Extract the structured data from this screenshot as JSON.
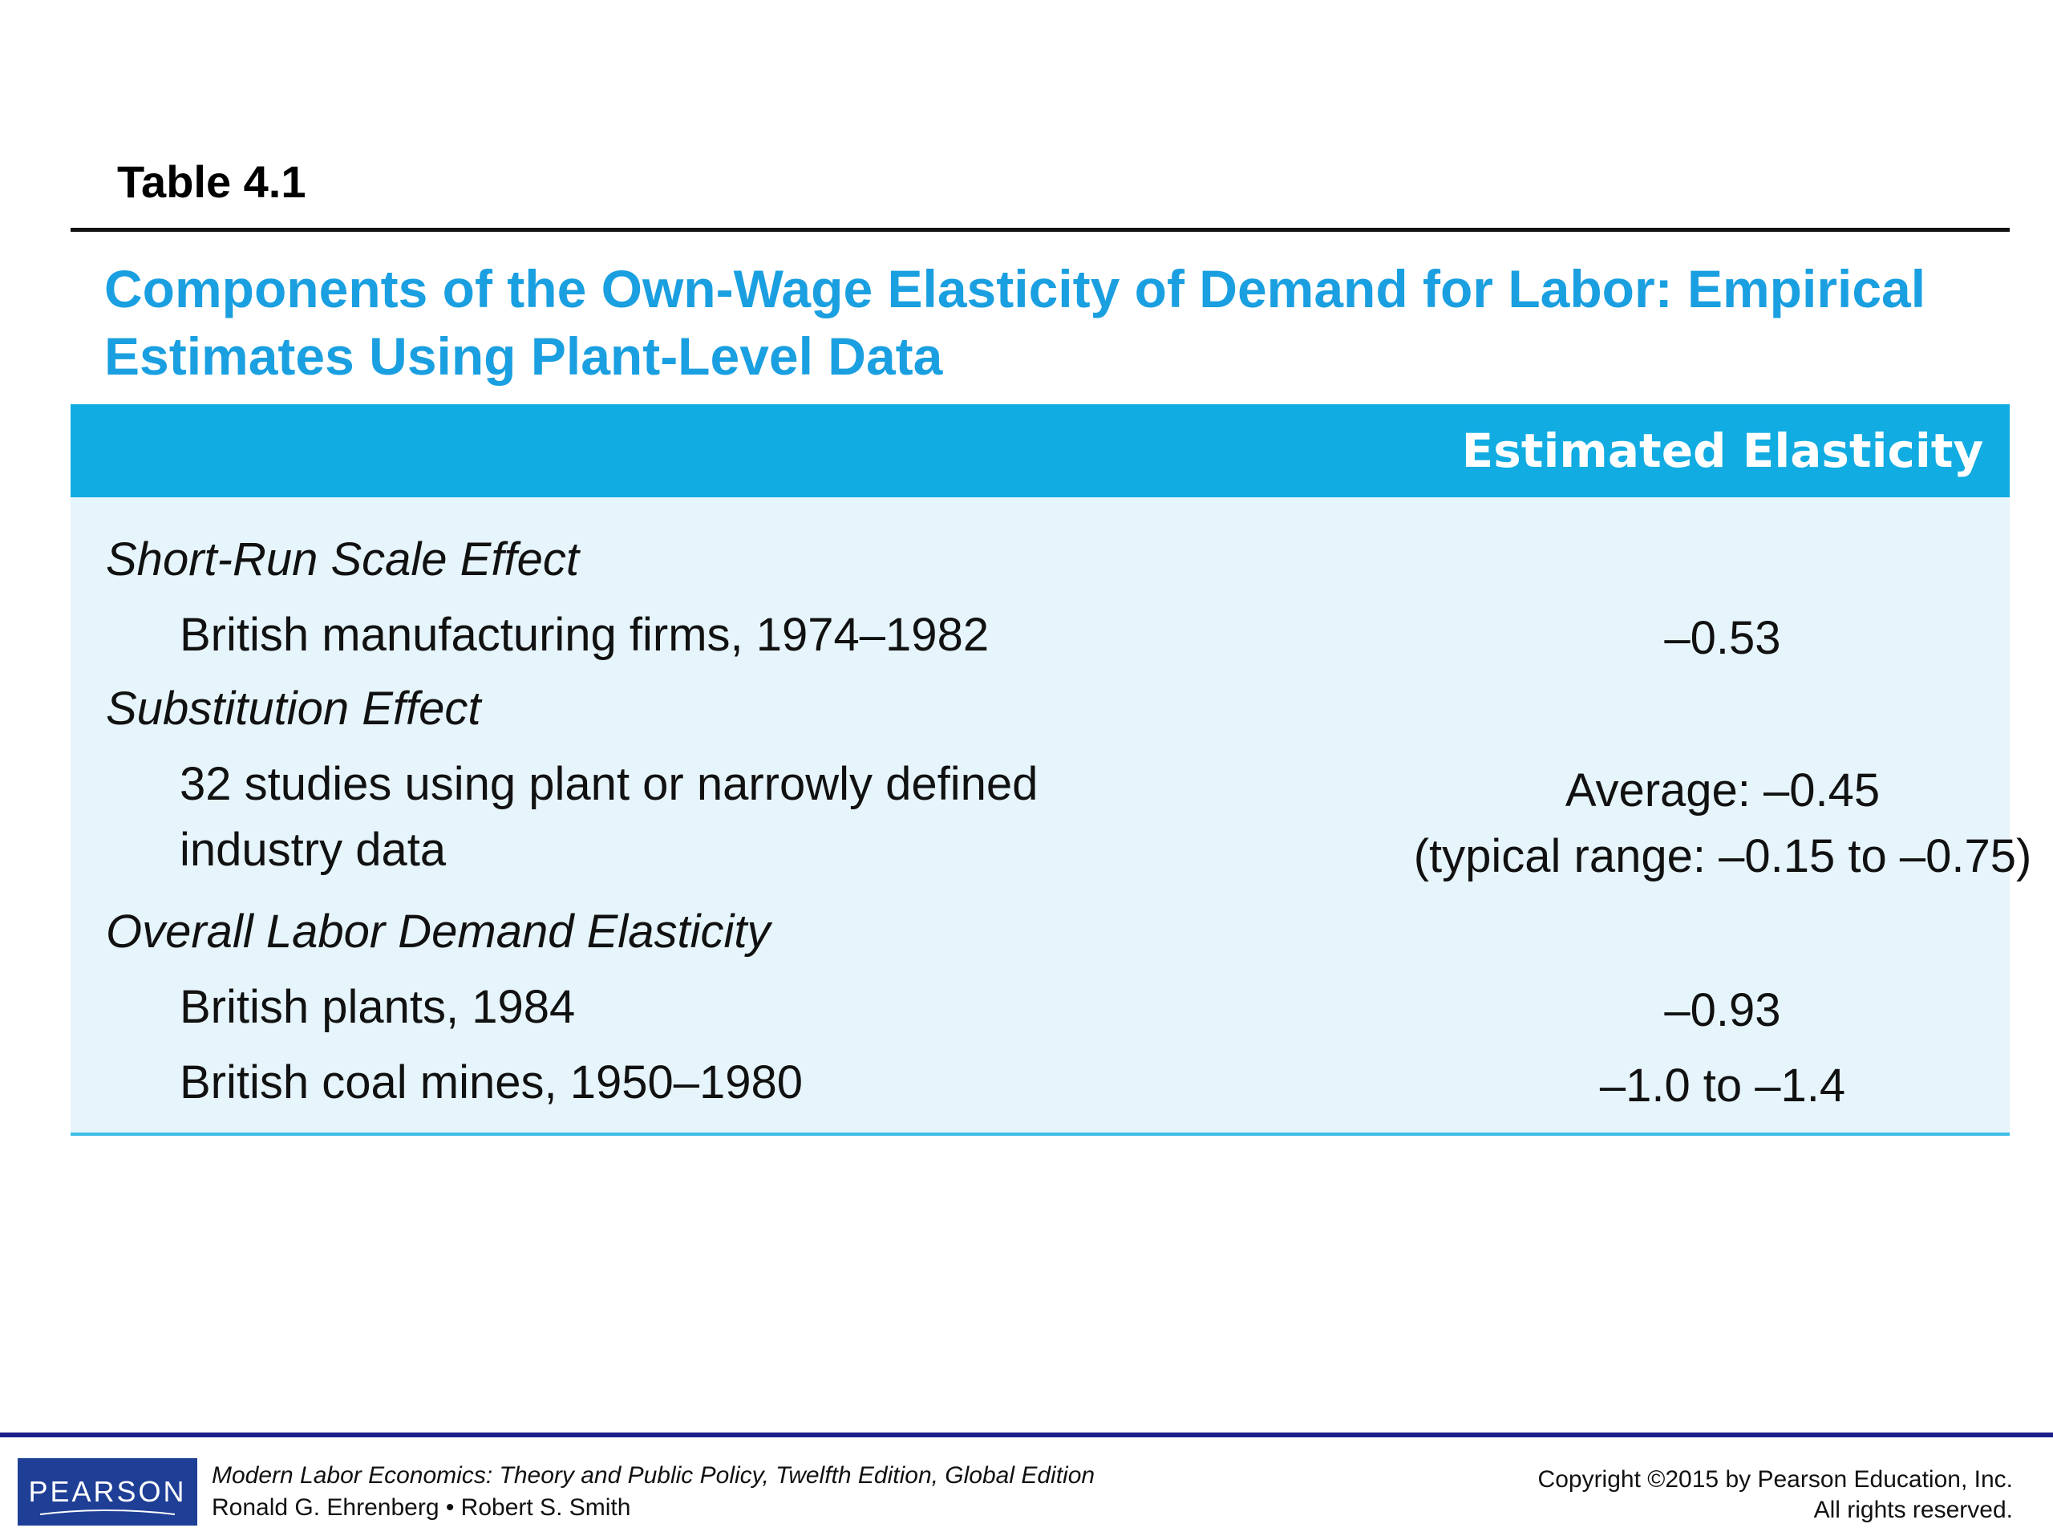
{
  "table_label": "Table 4.1",
  "title_lines": [
    "Components of the Own-Wage Elasticity of Demand for Labor: Empirical",
    "Estimates Using Plant-Level Data"
  ],
  "header": {
    "column_right": "Estimated Elasticity"
  },
  "sections": [
    {
      "heading": "Short-Run Scale Effect",
      "items": [
        {
          "label_lines": [
            "British manufacturing firms, 1974–1982"
          ],
          "value_lines": [
            "–0.53"
          ]
        }
      ]
    },
    {
      "heading": "Substitution Effect",
      "items": [
        {
          "label_lines": [
            "32 studies using plant or narrowly defined",
            "industry data"
          ],
          "value_lines": [
            "Average: –0.45",
            "(typical range: –0.15 to –0.75)"
          ]
        }
      ]
    },
    {
      "heading": "Overall Labor Demand Elasticity",
      "items": [
        {
          "label_lines": [
            "British plants, 1984"
          ],
          "value_lines": [
            "–0.93"
          ]
        },
        {
          "label_lines": [
            "British coal mines, 1950–1980"
          ],
          "value_lines": [
            "–1.0 to –1.4"
          ]
        }
      ]
    }
  ],
  "footer": {
    "logo_text": "PEARSON",
    "book_title": "Modern Labor Economics: Theory and Public Policy, Twelfth Edition, Global Edition",
    "authors": "Ronald G. Ehrenberg • Robert S. Smith",
    "copyright": "Copyright ©2015 by Pearson Education, Inc.",
    "rights": "All rights reserved."
  },
  "colors": {
    "title_blue": "#1a9fe0",
    "header_band": "#11ace2",
    "body_background": "#e6f4fb",
    "footer_rule": "#1b1f8a",
    "logo_background": "#1f3f96"
  }
}
